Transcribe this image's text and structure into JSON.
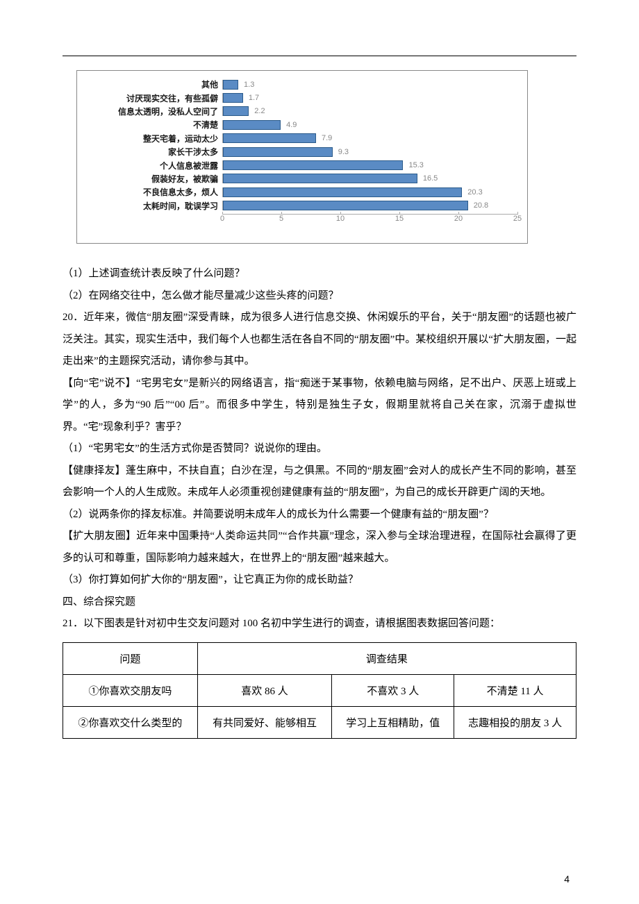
{
  "chart": {
    "type": "bar-horizontal",
    "max": 25,
    "ticks": [
      0,
      5,
      10,
      15,
      20,
      25
    ],
    "bar_fill": "#5a8bc4",
    "bar_border": "#2a5a8a",
    "value_color": "#888888",
    "axis_color": "#aaaaaa",
    "label_color": "#1a1a1a",
    "label_fontsize": 12,
    "value_fontsize": 11,
    "items": [
      {
        "label": "其他",
        "value": 1.3
      },
      {
        "label": "讨厌现实交往，有些孤僻",
        "value": 1.7
      },
      {
        "label": "信息太透明，没私人空间了",
        "value": 2.2
      },
      {
        "label": "不清楚",
        "value": 4.9
      },
      {
        "label": "整天宅着，运动太少",
        "value": 7.9
      },
      {
        "label": "家长干涉太多",
        "value": 9.3
      },
      {
        "label": "个人信息被泄露",
        "value": 15.3
      },
      {
        "label": "假装好友，被欺骗",
        "value": 16.5
      },
      {
        "label": "不良信息太多，烦人",
        "value": 20.3
      },
      {
        "label": "太耗时间，耽误学习",
        "value": 20.8
      }
    ]
  },
  "body": {
    "q1": "（1）上述调查统计表反映了什么问题？",
    "q2": "（2）在网络交往中，怎么做才能尽量减少这些头疼的问题？",
    "p20a": "20．近年来，微信“朋友圈”深受青睐，成为很多人进行信息交换、休闲娱乐的平台，关于“朋友圈”的话题也被广泛关注。其实，现实生活中，我们每个人也都生活在各自不同的“朋友圈”中。某校组织开展以“扩大朋友圈，一起走出来”的主题探究活动，请你参与其中。",
    "p20b": "【向“宅”说不】“宅男宅女”是新兴的网络语言，指“痴迷于某事物，依赖电脑与网络，足不出户、厌恶上班或上学”的人，多为“90 后”“00 后”。而很多中学生，特别是独生子女，假期里就将自己关在家，沉溺于虚拟世界。“宅”现象利乎？害乎？",
    "p20q1": "（1）“宅男宅女”的生活方式你是否赞同？说说你的理由。",
    "p20c": "【健康择友】蓬生麻中，不扶自直；白沙在涅，与之俱黑。不同的“朋友圈”会对人的成长产生不同的影响，甚至会影响一个人的人生成败。未成年人必须重视创建健康有益的“朋友圈”，为自己的成长开辟更广阔的天地。",
    "p20q2": "（2）说两条你的择友标准。并简要说明未成年人的成长为什么需要一个健康有益的“朋友圈”？",
    "p20d": "【扩大朋友圈】近年来中国秉持“人类命运共同”“合作共赢”理念，深入参与全球治理进程，在国际社会赢得了更多的认可和尊重，国际影响力越来越大，在世界上的“朋友圈”越来越大。",
    "p20q3": "（3）你打算如何扩大你的“朋友圈”，让它真正为你的成长助益？",
    "sec4": "四、综合探究题",
    "p21": "21．以下图表是针对初中生交友问题对 100 名初中学生进行的调查，请根据图表数据回答问题："
  },
  "table": {
    "header": {
      "c1": "问题",
      "c2": "调查结果"
    },
    "r1": {
      "c1": "①你喜欢交朋友吗",
      "c2": "喜欢 86 人",
      "c3": "不喜欢 3 人",
      "c4": "不清楚 11 人"
    },
    "r2": {
      "c1": "②你喜欢交什么类型的",
      "c2": "有共同爱好、能够相互",
      "c3": "学习上互相精助，值",
      "c4": "志趣相投的朋友 3 人"
    },
    "col_widths": [
      "25%",
      "25%",
      "25%",
      "25%"
    ]
  },
  "page_number": "4"
}
